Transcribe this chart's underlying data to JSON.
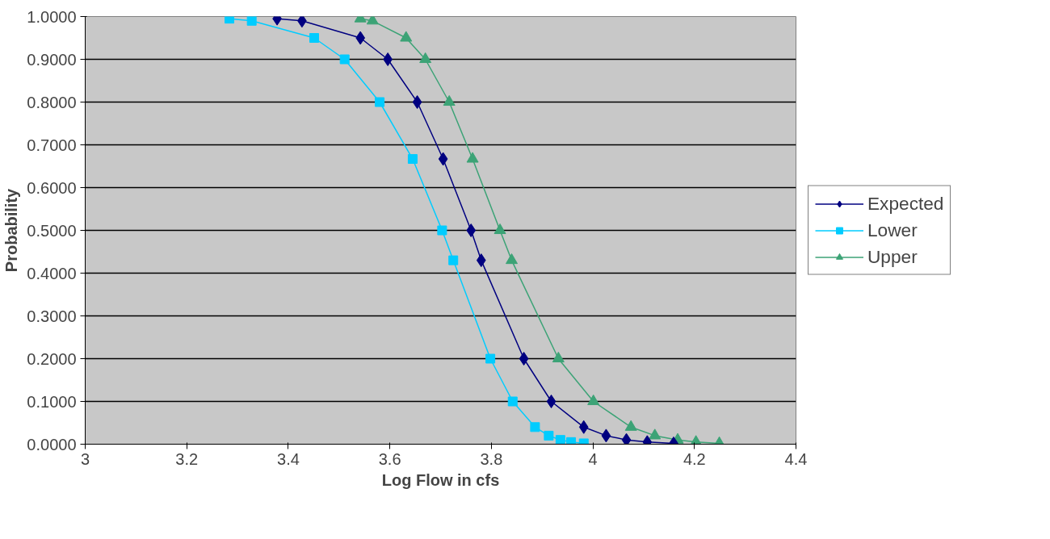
{
  "chart_data": {
    "type": "line",
    "xlabel": "Log Flow in cfs",
    "ylabel": "Probability",
    "xlim": [
      3,
      4.4
    ],
    "xticks": [
      3,
      3.2,
      3.4,
      3.6,
      3.8,
      4,
      4.2,
      4.4
    ],
    "ylim": [
      0,
      1
    ],
    "yticks": [
      {
        "value": 0,
        "label": "0.0000"
      },
      {
        "value": 0.1,
        "label": "0.1000"
      },
      {
        "value": 0.2,
        "label": "0.2000"
      },
      {
        "value": 0.3,
        "label": "0.3000"
      },
      {
        "value": 0.4,
        "label": "0.4000"
      },
      {
        "value": 0.5,
        "label": "0.5000"
      },
      {
        "value": 0.6,
        "label": "0.6000"
      },
      {
        "value": 0.7,
        "label": "0.7000"
      },
      {
        "value": 0.8,
        "label": "0.8000"
      },
      {
        "value": 0.9,
        "label": "0.9000"
      },
      {
        "value": 1,
        "label": "1.0000"
      }
    ],
    "grid": "y",
    "legend": "right",
    "line_style": "solid",
    "series": [
      {
        "name": "Expected",
        "color": "#000080",
        "marker": "diamond",
        "x": [
          3.378,
          3.427,
          3.542,
          3.596,
          3.654,
          3.705,
          3.76,
          3.78,
          3.864,
          3.918,
          3.982,
          4.026,
          4.066,
          4.107,
          4.159
        ],
        "values": [
          0.995,
          0.99,
          0.95,
          0.9,
          0.8,
          0.667,
          0.5,
          0.43,
          0.2,
          0.1,
          0.04,
          0.02,
          0.01,
          0.005,
          0.002
        ]
      },
      {
        "name": "Lower",
        "color": "#00ccff",
        "marker": "square",
        "x": [
          3.284,
          3.328,
          3.451,
          3.511,
          3.58,
          3.645,
          3.703,
          3.725,
          3.798,
          3.842,
          3.886,
          3.913,
          3.936,
          3.957,
          3.982
        ],
        "values": [
          0.995,
          0.99,
          0.95,
          0.9,
          0.8,
          0.667,
          0.5,
          0.43,
          0.2,
          0.1,
          0.04,
          0.02,
          0.01,
          0.005,
          0.002
        ]
      },
      {
        "name": "Upper",
        "color": "#3ca376",
        "marker": "triangle",
        "x": [
          3.542,
          3.566,
          3.632,
          3.67,
          3.717,
          3.763,
          3.817,
          3.84,
          3.932,
          4.001,
          4.075,
          4.122,
          4.167,
          4.203,
          4.249
        ],
        "values": [
          0.995,
          0.99,
          0.95,
          0.9,
          0.8,
          0.667,
          0.5,
          0.43,
          0.2,
          0.1,
          0.04,
          0.02,
          0.01,
          0.005,
          0.002
        ]
      }
    ]
  }
}
